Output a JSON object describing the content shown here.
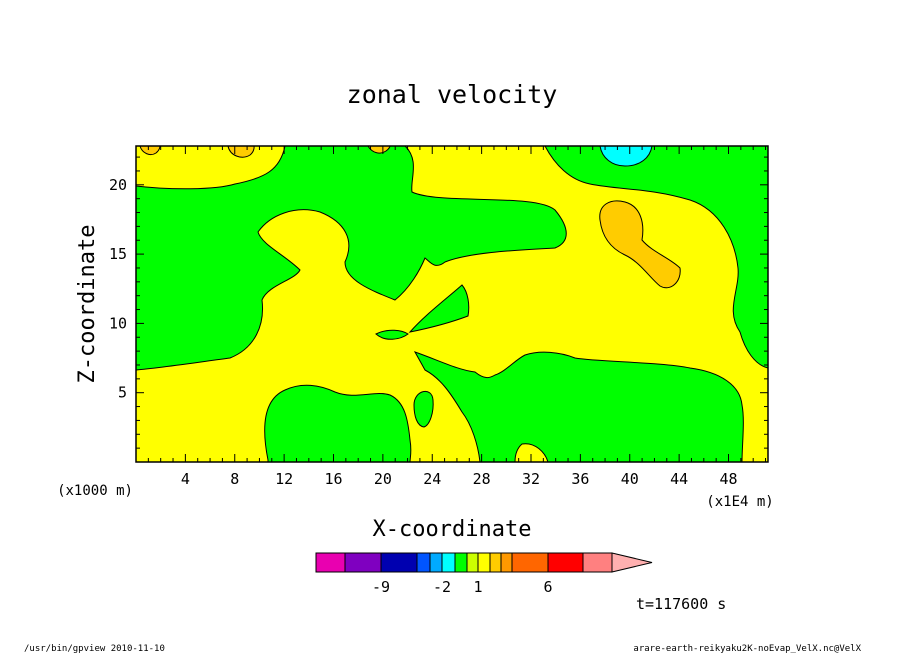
{
  "chart_data": {
    "type": "heatmap",
    "title": "zonal velocity",
    "xlabel": "X-coordinate",
    "ylabel": "Z-coordinate",
    "x_scale_label": "(x1E4 m)",
    "y_scale_label": "(x1000 m)",
    "x_ticks": [
      "4",
      "8",
      "12",
      "16",
      "20",
      "24",
      "28",
      "32",
      "36",
      "40",
      "44",
      "48"
    ],
    "y_ticks": [
      "5",
      "10",
      "15",
      "20"
    ],
    "xlim": [
      0,
      51.2
    ],
    "ylim": [
      0,
      22.8
    ],
    "time_label": "t=117600 s",
    "colorbar": {
      "levels": [
        -12,
        -9,
        -6,
        -3,
        -2,
        -1,
        0,
        1,
        2,
        3,
        4,
        6,
        9,
        12
      ],
      "colors": [
        "#e900b0",
        "#7f00c0",
        "#0000b0",
        "#0055ff",
        "#00aaff",
        "#00ffff",
        "#00ff00",
        "#ccff00",
        "#ffff00",
        "#ffcc00",
        "#ff9900",
        "#ff6600",
        "#ff0000",
        "#ff8080",
        "#ffb0b0"
      ],
      "labels": [
        "-9",
        "-2",
        "1",
        "6"
      ]
    },
    "field_colors": {
      "background": "#ffff00",
      "green": "#00ff00",
      "gold": "#ffcc00",
      "cyan": "#00ffff"
    }
  },
  "footer": {
    "left": "/usr/bin/gpview   2010-11-10",
    "right": "arare-earth-reikyaku2K-noEvap_VelX.nc@VelX"
  }
}
